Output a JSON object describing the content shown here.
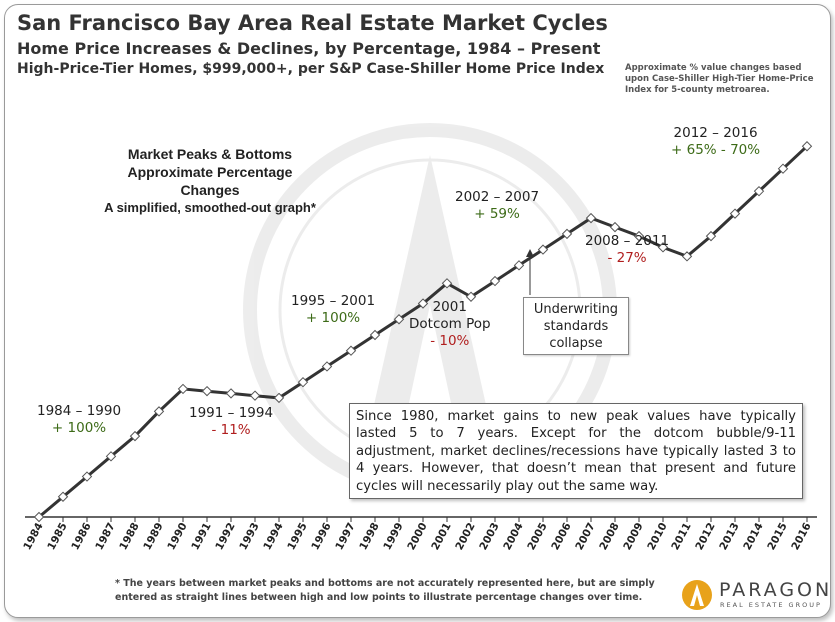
{
  "header": {
    "title": "San Francisco Bay Area Real Estate Market Cycles",
    "subtitle": "Home Price Increases & Declines, by Percentage, 1984 – Present",
    "subtitle2": "High-Price-Tier Homes, $999,000+, per S&P Case-Shiller Home Price Index",
    "note": "Approximate % value changes  based upon Case-Shiller High-Tier Home-Price Index for 5-county metroarea."
  },
  "heading": {
    "line1": "Market Peaks & Bottoms",
    "line2": "Approximate Percentage Changes",
    "line3": "A simplified, smoothed-out graph*"
  },
  "annotations": {
    "a1984": {
      "period": "1984 – 1990",
      "change": "+ 100%"
    },
    "a1991": {
      "period": "1991 – 1994",
      "change": "- 11%"
    },
    "a1995": {
      "period": "1995 – 2001",
      "change": "+ 100%"
    },
    "a2001": {
      "line1": "2001",
      "line2": "Dotcom Pop",
      "change": "- 10%"
    },
    "a2002": {
      "period": "2002 – 2007",
      "change": "+ 59%"
    },
    "a2008": {
      "period": "2008 – 2011",
      "change": "- 27%"
    },
    "a2012": {
      "period": "2012 – 2016",
      "change": "+ 65% - 70%"
    }
  },
  "underwriting": {
    "line1": "Underwriting",
    "line2": "standards",
    "line3": "collapse"
  },
  "info_text": "Since 1980, market gains  to new peak values have typically lasted 5 to 7 years. Except for the dotcom bubble/9-11 adjustment, market declines/recessions have typically lasted 3 to 4 years. However, that doesn’t mean that present and future cycles will necessarily play out the same way.",
  "footnote": "* The years between market peaks and bottoms are not accurately represented here, but are simply entered as straight lines between high and low points to illustrate percentage changes over time.",
  "logo": {
    "name": "PARAGON",
    "tagline": "REAL ESTATE GROUP"
  },
  "colors": {
    "line": "#333333",
    "marker_fill": "#ffffff",
    "gain": "#3d6b18",
    "loss": "#b01e1e",
    "logo_gold": "#e8a21a"
  },
  "chart_data": {
    "type": "line",
    "x": [
      "1984",
      "1985",
      "1986",
      "1987",
      "1988",
      "1989",
      "1990",
      "1991",
      "1992",
      "1993",
      "1994",
      "1995",
      "1996",
      "1997",
      "1998",
      "1999",
      "2000",
      "2001",
      "2002",
      "2003",
      "2004",
      "2005",
      "2006",
      "2007",
      "2008",
      "2009",
      "2010",
      "2011",
      "2012",
      "2013",
      "2014",
      "2015",
      "2016"
    ],
    "values": [
      0,
      9,
      18,
      27,
      36,
      47,
      57,
      56,
      55,
      54,
      53,
      60,
      67,
      74,
      81,
      88,
      95,
      104,
      98,
      105,
      112,
      119,
      126,
      133,
      129,
      125,
      120,
      116,
      125,
      135,
      145,
      155,
      165
    ],
    "ylim": [
      0,
      170
    ],
    "grid": false,
    "markers": "diamond"
  }
}
